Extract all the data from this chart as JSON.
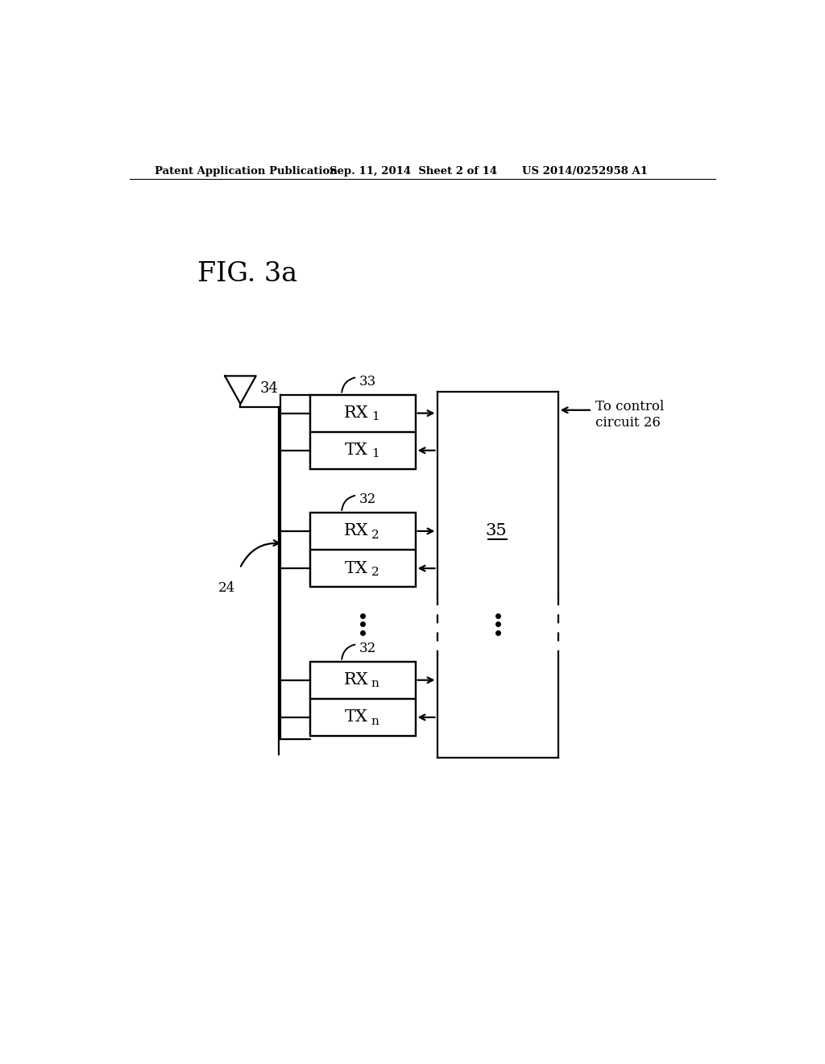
{
  "bg_color": "#ffffff",
  "header_left": "Patent Application Publication",
  "header_mid": "Sep. 11, 2014  Sheet 2 of 14",
  "header_right": "US 2014/0252958 A1",
  "fig_label": "FIG. 3a",
  "antenna_label": "34",
  "brace33_label": "33",
  "brace32a_label": "32",
  "brace32b_label": "32",
  "label24": "24",
  "label35": "35",
  "label_control": "To control\ncircuit 26",
  "rx1_label": "RX",
  "tx1_label": "TX",
  "rx2_label": "RX",
  "tx2_label": "TX",
  "rxn_label": "RX",
  "txn_label": "TX",
  "sub1": "1",
  "sub2": "2",
  "subn": "n",
  "lw": 1.6
}
